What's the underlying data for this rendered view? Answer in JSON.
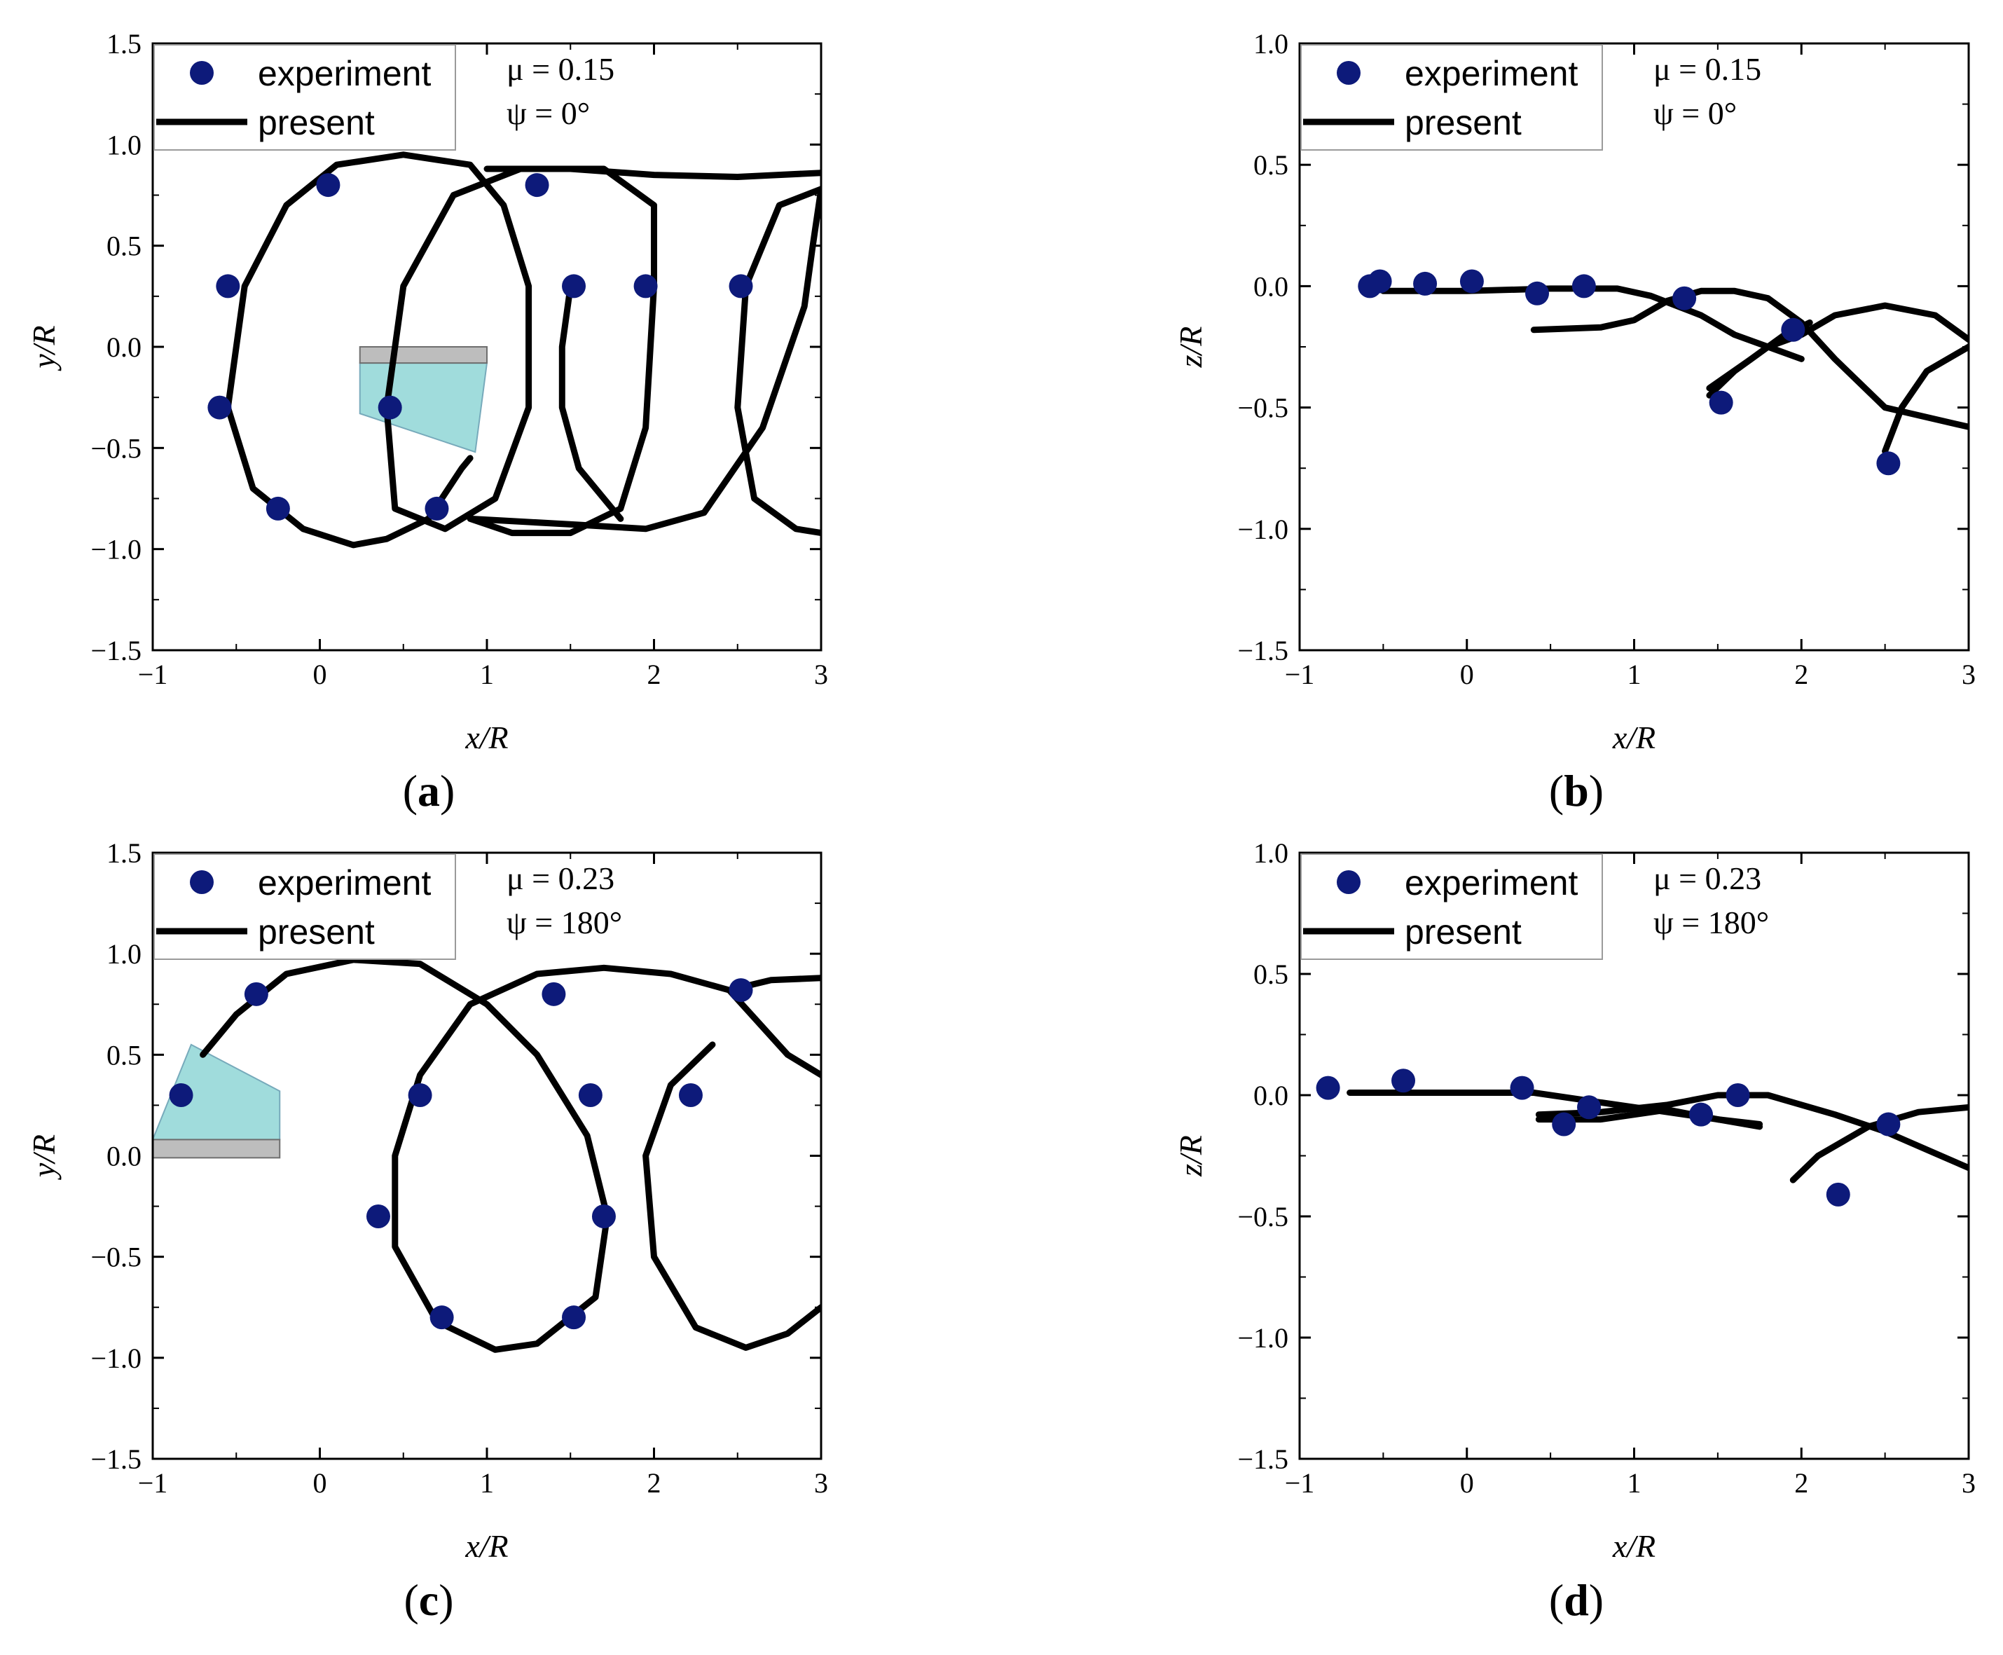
{
  "chart_data": [
    {
      "id": "a",
      "type": "line",
      "panel_label": "a",
      "xlabel": "x/R",
      "ylabel": "y/R",
      "xlim": [
        -1,
        3
      ],
      "ylim": [
        -1.5,
        1.5
      ],
      "xticks": [
        -1,
        0,
        1,
        2,
        3
      ],
      "yticks": [
        1.5,
        1.0,
        0.5,
        0.0,
        -0.5,
        -1.0,
        -1.5
      ],
      "xtick_labels": [
        "−1",
        "0",
        "1",
        "2",
        "3"
      ],
      "ytick_labels": [
        "1.5",
        "1.0",
        "0.5",
        "0.0",
        "−0.5",
        "−1.0",
        "−1.5"
      ],
      "params": [
        "μ = 0.15",
        "ψ = 0°"
      ],
      "legend": [
        "experiment",
        "present"
      ],
      "colors": {
        "experiment": "#0d1a7a",
        "present": "#000000",
        "blade": "#8fd6d6"
      },
      "series": [
        {
          "name": "experiment",
          "kind": "scatter",
          "points": [
            [
              -0.55,
              0.3
            ],
            [
              -0.6,
              -0.3
            ],
            [
              -0.25,
              -0.8
            ],
            [
              0.05,
              0.8
            ],
            [
              0.42,
              -0.3
            ],
            [
              0.7,
              -0.8
            ],
            [
              1.3,
              0.8
            ],
            [
              1.52,
              0.3
            ],
            [
              1.95,
              0.3
            ],
            [
              2.52,
              0.3
            ]
          ]
        },
        {
          "name": "present",
          "kind": "line",
          "points": [
            [
              0.9,
              -0.55
            ],
            [
              0.85,
              -0.6
            ],
            [
              0.65,
              -0.85
            ],
            [
              0.4,
              -0.95
            ],
            [
              0.2,
              -0.98
            ],
            [
              -0.1,
              -0.9
            ],
            [
              -0.4,
              -0.7
            ],
            [
              -0.55,
              -0.3
            ],
            [
              -0.45,
              0.3
            ],
            [
              -0.2,
              0.7
            ],
            [
              0.1,
              0.9
            ],
            [
              0.5,
              0.95
            ],
            [
              0.9,
              0.9
            ],
            [
              1.1,
              0.7
            ],
            [
              1.25,
              0.3
            ],
            [
              1.25,
              -0.3
            ],
            [
              1.05,
              -0.75
            ],
            [
              0.75,
              -0.9
            ],
            [
              0.45,
              -0.8
            ],
            [
              0.4,
              -0.3
            ],
            [
              0.5,
              0.3
            ],
            [
              0.8,
              0.75
            ],
            [
              1.2,
              0.88
            ],
            [
              1.7,
              0.88
            ],
            [
              2.0,
              0.7
            ],
            [
              2.0,
              0.3
            ],
            [
              1.95,
              -0.4
            ],
            [
              1.8,
              -0.8
            ],
            [
              1.5,
              -0.92
            ],
            [
              1.15,
              -0.92
            ],
            [
              0.9,
              -0.85
            ],
            [
              1.55,
              -0.88
            ],
            [
              1.95,
              -0.9
            ],
            [
              2.3,
              -0.82
            ],
            [
              2.65,
              -0.4
            ],
            [
              2.9,
              0.2
            ],
            [
              2.95,
              0.5
            ],
            [
              3.0,
              0.78
            ],
            [
              2.75,
              0.7
            ],
            [
              2.55,
              0.3
            ],
            [
              2.5,
              -0.3
            ],
            [
              2.6,
              -0.75
            ],
            [
              2.85,
              -0.9
            ],
            [
              3.0,
              -0.92
            ]
          ]
        },
        {
          "name": "present-b",
          "kind": "line",
          "points": [
            [
              1.0,
              0.88
            ],
            [
              1.5,
              0.88
            ],
            [
              2.0,
              0.85
            ],
            [
              2.5,
              0.84
            ],
            [
              3.0,
              0.86
            ]
          ]
        },
        {
          "name": "present-c",
          "kind": "line",
          "points": [
            [
              1.5,
              0.3
            ],
            [
              1.45,
              0.0
            ],
            [
              1.45,
              -0.3
            ],
            [
              1.55,
              -0.6
            ],
            [
              1.8,
              -0.85
            ]
          ]
        }
      ]
    },
    {
      "id": "b",
      "type": "line",
      "panel_label": "b",
      "xlabel": "x/R",
      "ylabel": "z/R",
      "xlim": [
        -1,
        3
      ],
      "ylim": [
        -1.5,
        1.0
      ],
      "xticks": [
        -1,
        0,
        1,
        2,
        3
      ],
      "yticks": [
        1.0,
        0.5,
        0.0,
        -0.5,
        -1.0,
        -1.5
      ],
      "xtick_labels": [
        "−1",
        "0",
        "1",
        "2",
        "3"
      ],
      "ytick_labels": [
        "1.0",
        "0.5",
        "0.0",
        "−0.5",
        "−1.0",
        "−1.5"
      ],
      "params": [
        "μ = 0.15",
        "ψ = 0°"
      ],
      "legend": [
        "experiment",
        "present"
      ],
      "colors": {
        "experiment": "#0d1a7a",
        "present": "#000000"
      },
      "series": [
        {
          "name": "experiment",
          "kind": "scatter",
          "points": [
            [
              -0.58,
              0.0
            ],
            [
              -0.52,
              0.02
            ],
            [
              -0.25,
              0.01
            ],
            [
              0.03,
              0.02
            ],
            [
              0.42,
              -0.03
            ],
            [
              0.7,
              0.0
            ],
            [
              1.3,
              -0.05
            ],
            [
              1.52,
              -0.48
            ],
            [
              1.95,
              -0.18
            ],
            [
              2.52,
              -0.73
            ]
          ]
        },
        {
          "name": "present",
          "kind": "line",
          "points": [
            [
              -0.5,
              -0.02
            ],
            [
              0.0,
              -0.02
            ],
            [
              0.5,
              -0.01
            ],
            [
              0.9,
              -0.01
            ],
            [
              1.1,
              -0.04
            ],
            [
              1.4,
              -0.12
            ],
            [
              1.6,
              -0.2
            ],
            [
              2.0,
              -0.3
            ]
          ]
        },
        {
          "name": "present-b",
          "kind": "line",
          "points": [
            [
              0.4,
              -0.18
            ],
            [
              0.8,
              -0.17
            ],
            [
              1.0,
              -0.14
            ],
            [
              1.2,
              -0.06
            ],
            [
              1.4,
              -0.02
            ],
            [
              1.6,
              -0.02
            ],
            [
              1.8,
              -0.05
            ],
            [
              2.0,
              -0.15
            ],
            [
              2.2,
              -0.3
            ],
            [
              2.5,
              -0.5
            ],
            [
              3.0,
              -0.58
            ]
          ]
        },
        {
          "name": "present-c",
          "kind": "line",
          "points": [
            [
              1.45,
              -0.45
            ],
            [
              1.6,
              -0.35
            ],
            [
              1.8,
              -0.25
            ],
            [
              2.0,
              -0.2
            ],
            [
              2.2,
              -0.12
            ],
            [
              2.5,
              -0.08
            ],
            [
              2.8,
              -0.12
            ],
            [
              3.0,
              -0.22
            ]
          ]
        },
        {
          "name": "present-d",
          "kind": "line",
          "points": [
            [
              1.45,
              -0.42
            ],
            [
              1.7,
              -0.3
            ],
            [
              1.9,
              -0.2
            ],
            [
              2.05,
              -0.15
            ]
          ]
        },
        {
          "name": "present-e",
          "kind": "line",
          "points": [
            [
              2.5,
              -0.68
            ],
            [
              2.6,
              -0.5
            ],
            [
              2.75,
              -0.35
            ],
            [
              3.0,
              -0.25
            ]
          ]
        }
      ]
    },
    {
      "id": "c",
      "type": "line",
      "panel_label": "c",
      "xlabel": "x/R",
      "ylabel": "y/R",
      "xlim": [
        -1,
        3
      ],
      "ylim": [
        -1.5,
        1.5
      ],
      "xticks": [
        -1,
        0,
        1,
        2,
        3
      ],
      "yticks": [
        1.5,
        1.0,
        0.5,
        0.0,
        -0.5,
        -1.0,
        -1.5
      ],
      "xtick_labels": [
        "−1",
        "0",
        "1",
        "2",
        "3"
      ],
      "ytick_labels": [
        "1.5",
        "1.0",
        "0.5",
        "0.0",
        "−0.5",
        "−1.0",
        "−1.5"
      ],
      "params": [
        "μ = 0.23",
        "ψ = 180°"
      ],
      "legend": [
        "experiment",
        "present"
      ],
      "colors": {
        "experiment": "#0d1a7a",
        "present": "#000000",
        "blade": "#8fd6d6"
      },
      "series": [
        {
          "name": "experiment",
          "kind": "scatter",
          "points": [
            [
              -0.83,
              0.3
            ],
            [
              -0.38,
              0.8
            ],
            [
              0.35,
              -0.3
            ],
            [
              0.6,
              0.3
            ],
            [
              0.73,
              -0.8
            ],
            [
              1.4,
              0.8
            ],
            [
              1.52,
              -0.8
            ],
            [
              1.62,
              0.3
            ],
            [
              1.7,
              -0.3
            ],
            [
              2.22,
              0.3
            ],
            [
              2.52,
              0.82
            ]
          ]
        },
        {
          "name": "present",
          "kind": "line",
          "points": [
            [
              -0.7,
              0.5
            ],
            [
              -0.5,
              0.7
            ],
            [
              -0.2,
              0.9
            ],
            [
              0.2,
              0.97
            ],
            [
              0.6,
              0.95
            ],
            [
              1.0,
              0.75
            ],
            [
              1.3,
              0.5
            ],
            [
              1.6,
              0.1
            ],
            [
              1.72,
              -0.3
            ],
            [
              1.65,
              -0.7
            ],
            [
              1.3,
              -0.93
            ],
            [
              1.05,
              -0.96
            ],
            [
              0.7,
              -0.82
            ],
            [
              0.45,
              -0.45
            ],
            [
              0.45,
              0.0
            ],
            [
              0.6,
              0.4
            ],
            [
              0.9,
              0.75
            ],
            [
              1.3,
              0.9
            ],
            [
              1.7,
              0.93
            ],
            [
              2.1,
              0.9
            ],
            [
              2.45,
              0.82
            ],
            [
              2.8,
              0.5
            ],
            [
              3.0,
              0.4
            ]
          ]
        },
        {
          "name": "present-b",
          "kind": "line",
          "points": [
            [
              2.45,
              0.82
            ],
            [
              2.7,
              0.87
            ],
            [
              3.0,
              0.88
            ]
          ]
        },
        {
          "name": "present-c",
          "kind": "line",
          "points": [
            [
              3.0,
              -0.75
            ],
            [
              2.8,
              -0.88
            ],
            [
              2.55,
              -0.95
            ],
            [
              2.25,
              -0.85
            ],
            [
              2.0,
              -0.5
            ],
            [
              1.95,
              0.0
            ],
            [
              2.1,
              0.35
            ],
            [
              2.35,
              0.55
            ]
          ]
        }
      ]
    },
    {
      "id": "d",
      "type": "line",
      "panel_label": "d",
      "xlabel": "x/R",
      "ylabel": "z/R",
      "xlim": [
        -1,
        3
      ],
      "ylim": [
        -1.5,
        1.0
      ],
      "xticks": [
        -1,
        0,
        1,
        2,
        3
      ],
      "yticks": [
        1.0,
        0.5,
        0.0,
        -0.5,
        -1.0,
        -1.5
      ],
      "xtick_labels": [
        "−1",
        "0",
        "1",
        "2",
        "3"
      ],
      "ytick_labels": [
        "1.0",
        "0.5",
        "0.0",
        "−0.5",
        "−1.0",
        "−1.5"
      ],
      "params": [
        "μ = 0.23",
        "ψ = 180°"
      ],
      "legend": [
        "experiment",
        "present"
      ],
      "colors": {
        "experiment": "#0d1a7a",
        "present": "#000000"
      },
      "series": [
        {
          "name": "experiment",
          "kind": "scatter",
          "points": [
            [
              -0.83,
              0.03
            ],
            [
              -0.38,
              0.06
            ],
            [
              0.33,
              0.03
            ],
            [
              0.58,
              -0.12
            ],
            [
              0.73,
              -0.05
            ],
            [
              1.4,
              -0.08
            ],
            [
              1.62,
              0.0
            ],
            [
              2.22,
              -0.41
            ],
            [
              2.52,
              -0.12
            ]
          ]
        },
        {
          "name": "present",
          "kind": "line",
          "points": [
            [
              -0.7,
              0.01
            ],
            [
              0.0,
              0.01
            ],
            [
              0.4,
              0.01
            ],
            [
              0.8,
              -0.03
            ],
            [
              1.2,
              -0.07
            ],
            [
              1.5,
              -0.1
            ],
            [
              1.75,
              -0.12
            ]
          ]
        },
        {
          "name": "present-b",
          "kind": "line",
          "points": [
            [
              0.43,
              -0.08
            ],
            [
              0.8,
              -0.07
            ],
            [
              1.2,
              -0.04
            ],
            [
              1.5,
              0.0
            ],
            [
              1.8,
              0.0
            ],
            [
              2.2,
              -0.08
            ],
            [
              2.5,
              -0.15
            ],
            [
              3.0,
              -0.3
            ]
          ]
        },
        {
          "name": "present-c",
          "kind": "line",
          "points": [
            [
              0.43,
              -0.1
            ],
            [
              0.8,
              -0.1
            ],
            [
              1.2,
              -0.06
            ],
            [
              1.5,
              -0.1
            ],
            [
              1.75,
              -0.13
            ]
          ]
        },
        {
          "name": "present-d",
          "kind": "line",
          "points": [
            [
              1.95,
              -0.35
            ],
            [
              2.1,
              -0.25
            ],
            [
              2.4,
              -0.13
            ],
            [
              2.7,
              -0.07
            ],
            [
              3.0,
              -0.05
            ]
          ]
        }
      ]
    }
  ]
}
